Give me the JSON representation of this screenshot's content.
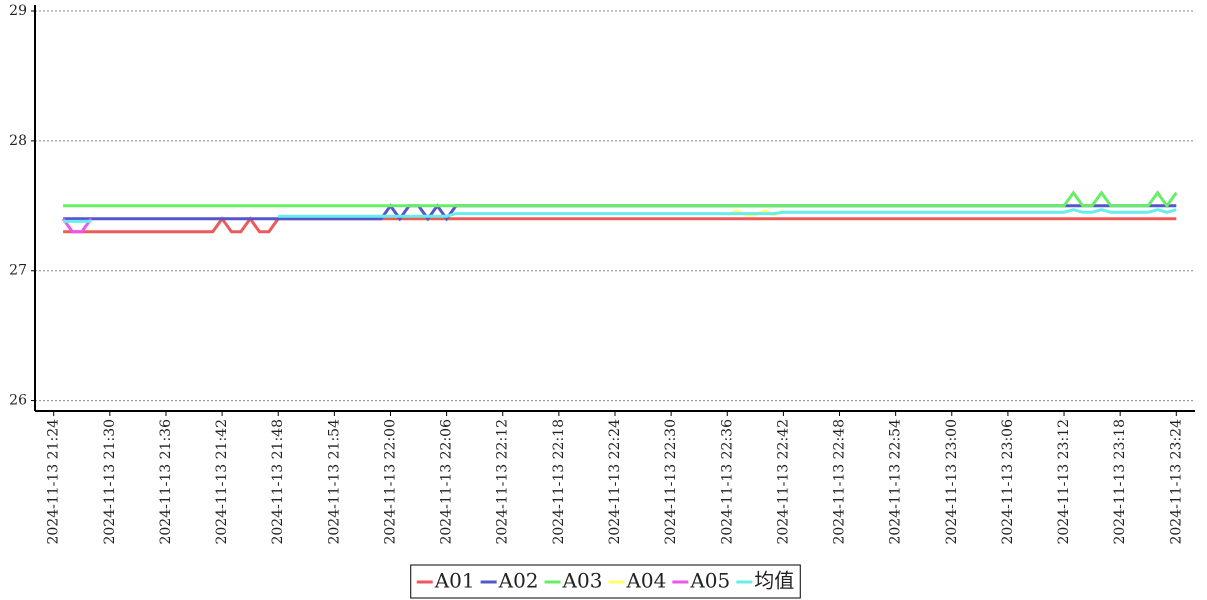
{
  "chart_data": {
    "type": "line",
    "x": [
      "2024-11-13 21:25",
      "2024-11-13 21:26",
      "2024-11-13 21:27",
      "2024-11-13 21:28",
      "2024-11-13 21:29",
      "2024-11-13 21:41",
      "2024-11-13 21:42",
      "2024-11-13 21:43",
      "2024-11-13 21:44",
      "2024-11-13 21:45",
      "2024-11-13 21:46",
      "2024-11-13 21:47",
      "2024-11-13 21:48",
      "2024-11-13 21:59",
      "2024-11-13 22:00",
      "2024-11-13 22:01",
      "2024-11-13 22:02",
      "2024-11-13 22:03",
      "2024-11-13 22:04",
      "2024-11-13 22:05",
      "2024-11-13 22:06",
      "2024-11-13 22:07",
      "2024-11-13 22:36",
      "2024-11-13 22:37",
      "2024-11-13 22:38",
      "2024-11-13 22:39",
      "2024-11-13 22:40",
      "2024-11-13 22:41",
      "2024-11-13 22:42",
      "2024-11-13 22:43",
      "2024-11-13 23:12",
      "2024-11-13 23:13",
      "2024-11-13 23:14",
      "2024-11-13 23:15",
      "2024-11-13 23:16",
      "2024-11-13 23:17",
      "2024-11-13 23:21",
      "2024-11-13 23:22",
      "2024-11-13 23:23",
      "2024-11-13 23:24"
    ],
    "series": [
      {
        "name": "A01",
        "color": "#ee5a5a",
        "values": [
          27.3,
          27.3,
          27.3,
          27.3,
          27.3,
          27.3,
          27.4,
          27.3,
          27.3,
          27.4,
          27.3,
          27.3,
          27.4,
          27.4,
          27.4,
          27.4,
          27.4,
          27.4,
          27.4,
          27.4,
          27.4,
          27.4,
          27.4,
          27.4,
          27.4,
          27.4,
          27.4,
          27.4,
          27.4,
          27.4,
          27.4,
          27.4,
          27.4,
          27.4,
          27.4,
          27.4,
          27.4,
          27.4,
          27.4,
          27.4
        ]
      },
      {
        "name": "A02",
        "color": "#5555cc",
        "values": [
          27.4,
          27.4,
          27.4,
          27.4,
          27.4,
          27.4,
          27.4,
          27.4,
          27.4,
          27.4,
          27.4,
          27.4,
          27.4,
          27.4,
          27.5,
          27.4,
          27.5,
          27.5,
          27.4,
          27.5,
          27.4,
          27.5,
          27.5,
          27.5,
          27.5,
          27.5,
          27.5,
          27.5,
          27.5,
          27.5,
          27.5,
          27.5,
          27.5,
          27.5,
          27.5,
          27.5,
          27.5,
          27.5,
          27.5,
          27.5
        ]
      },
      {
        "name": "A03",
        "color": "#66ee66",
        "values": [
          27.5,
          27.5,
          27.5,
          27.5,
          27.5,
          27.5,
          27.5,
          27.5,
          27.5,
          27.5,
          27.5,
          27.5,
          27.5,
          27.5,
          27.5,
          27.5,
          27.5,
          27.5,
          27.5,
          27.5,
          27.5,
          27.5,
          27.5,
          27.5,
          27.5,
          27.5,
          27.5,
          27.5,
          27.5,
          27.5,
          27.5,
          27.6,
          27.5,
          27.5,
          27.6,
          27.5,
          27.5,
          27.6,
          27.5,
          27.6
        ]
      },
      {
        "name": "A04",
        "color": "#ffff66",
        "values": [
          null,
          null,
          null,
          null,
          null,
          null,
          null,
          null,
          null,
          null,
          null,
          null,
          null,
          null,
          null,
          null,
          null,
          null,
          null,
          null,
          null,
          null,
          27.43,
          27.46,
          27.43,
          27.43,
          27.46,
          27.43,
          27.46,
          null,
          null,
          null,
          null,
          null,
          null,
          null,
          null,
          null,
          null,
          null
        ]
      },
      {
        "name": "A05",
        "color": "#ee55ee",
        "values": [
          27.4,
          27.3,
          27.3,
          27.4,
          null,
          null,
          null,
          null,
          null,
          null,
          null,
          null,
          null,
          null,
          null,
          null,
          null,
          null,
          null,
          null,
          null,
          null,
          null,
          null,
          null,
          null,
          null,
          null,
          null,
          null,
          null,
          null,
          null,
          null,
          null,
          null,
          null,
          null,
          null,
          null
        ]
      },
      {
        "name": "均值",
        "color": "#66eeee",
        "values": [
          27.38,
          27.38,
          27.38,
          27.38,
          null,
          null,
          null,
          null,
          null,
          null,
          null,
          null,
          27.42,
          27.42,
          27.42,
          27.42,
          27.42,
          27.42,
          27.42,
          27.42,
          27.42,
          27.44,
          27.44,
          27.44,
          27.44,
          27.44,
          27.44,
          27.44,
          27.45,
          27.45,
          27.45,
          27.47,
          27.45,
          27.45,
          27.47,
          27.45,
          27.45,
          27.47,
          27.45,
          27.47
        ]
      }
    ],
    "xlim": [
      "2024-11-13 21:22",
      "2024-11-13 23:26"
    ],
    "xticks": [
      "2024-11-13 21:24",
      "2024-11-13 21:30",
      "2024-11-13 21:36",
      "2024-11-13 21:42",
      "2024-11-13 21:48",
      "2024-11-13 21:54",
      "2024-11-13 22:00",
      "2024-11-13 22:06",
      "2024-11-13 22:12",
      "2024-11-13 22:18",
      "2024-11-13 22:24",
      "2024-11-13 22:30",
      "2024-11-13 22:36",
      "2024-11-13 22:42",
      "2024-11-13 22:48",
      "2024-11-13 22:54",
      "2024-11-13 23:00",
      "2024-11-13 23:06",
      "2024-11-13 23:12",
      "2024-11-13 23:18",
      "2024-11-13 23:24"
    ],
    "ylim": [
      25.92,
      29
    ],
    "yticks": [
      26,
      27,
      28,
      29
    ],
    "grid": true,
    "legend": "bottom"
  }
}
